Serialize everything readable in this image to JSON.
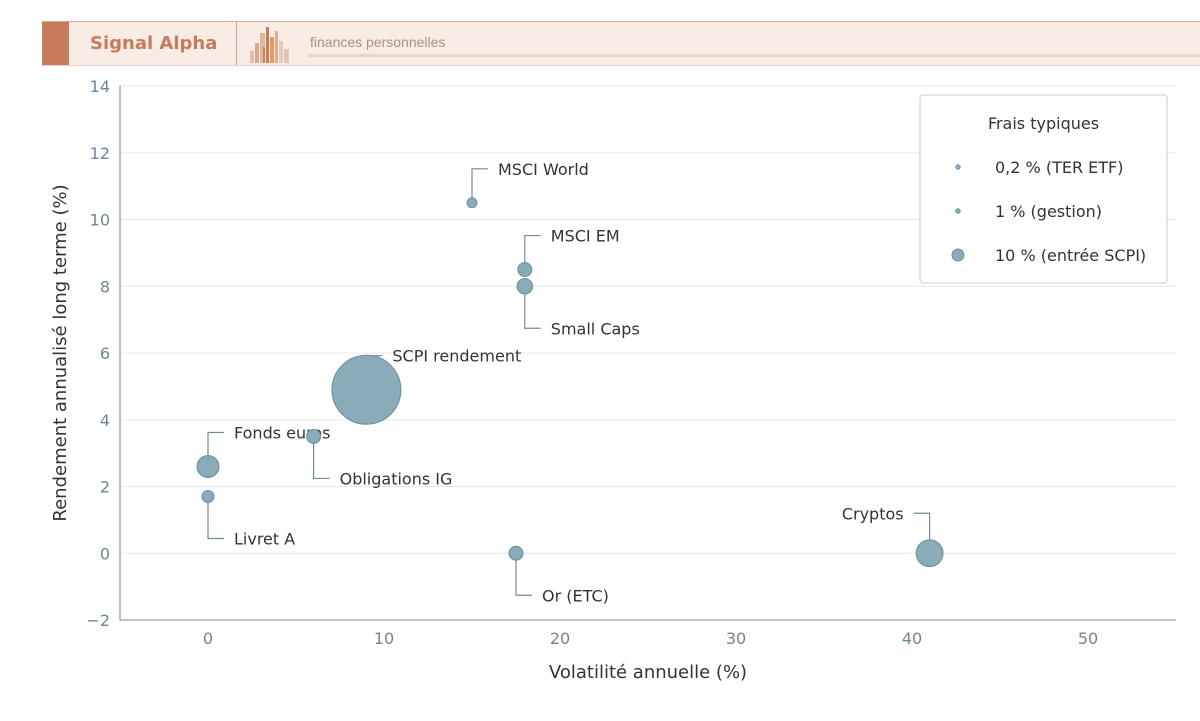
{
  "header": {
    "brand": "Signal Alpha",
    "tagline": "finances personnelles"
  },
  "colors": {
    "accent": "#c67b5c",
    "bubble_fill": "#8aabb8",
    "bubble_stroke": "#6e93a3",
    "axis": "#8aa0ad",
    "tick_text": "#6d8797",
    "grid": "#e6e9ec",
    "text": "#333333"
  },
  "chart_data": {
    "type": "scatter",
    "title": "",
    "xlabel": "Volatilité annuelle (%)",
    "ylabel": "Rendement annualisé long terme (%)",
    "xlim": [
      -5,
      55
    ],
    "ylim": [
      -2,
      14
    ],
    "xticks": [
      0,
      10,
      20,
      30,
      40,
      50
    ],
    "yticks": [
      -2,
      0,
      2,
      4,
      6,
      8,
      10,
      12,
      14
    ],
    "ytick_labels": [
      "−2",
      "0",
      "2",
      "4",
      "6",
      "8",
      "10",
      "12",
      "14"
    ],
    "grid": "horizontal",
    "size_encoding": "Frais typiques (%)",
    "points": [
      {
        "label": "MSCI World",
        "x": 15,
        "y": 10.5,
        "size": 0.2,
        "label_pos": "above-right"
      },
      {
        "label": "MSCI EM",
        "x": 18,
        "y": 8.5,
        "size": 0.4,
        "label_pos": "above-right"
      },
      {
        "label": "Small Caps",
        "x": 18,
        "y": 8,
        "size": 0.5,
        "label_pos": "below-right"
      },
      {
        "label": "SCPI rendement",
        "x": 9,
        "y": 4.9,
        "size": 10,
        "label_pos": "above-right"
      },
      {
        "label": "Fonds euros",
        "x": 0,
        "y": 2.6,
        "size": 1,
        "label_pos": "above-right"
      },
      {
        "label": "Obligations IG",
        "x": 6,
        "y": 3.5,
        "size": 0.4,
        "label_pos": "below-right"
      },
      {
        "label": "Livret A",
        "x": 0,
        "y": 1.7,
        "size": 0.3,
        "label_pos": "below-right"
      },
      {
        "label": "Or (ETC)",
        "x": 17.5,
        "y": 0,
        "size": 0.4,
        "label_pos": "below-right"
      },
      {
        "label": "Cryptos",
        "x": 41,
        "y": 0,
        "size": 1.5,
        "label_pos": "above-left"
      }
    ],
    "legend": {
      "title": "Frais typiques",
      "position": "top-right",
      "entries": [
        {
          "label": "0,2 % (TER ETF)",
          "size": 0.2
        },
        {
          "label": "1 % (gestion)",
          "size": 1
        },
        {
          "label": "10 % (entrée SCPI)",
          "size": 10
        }
      ]
    }
  }
}
